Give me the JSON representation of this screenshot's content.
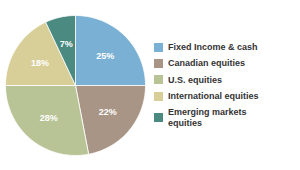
{
  "chart_data": {
    "type": "pie",
    "categories": [
      "Fixed Income & cash",
      "Canadian equities",
      "U.S. equities",
      "International equities",
      "Emerging markets\nequities"
    ],
    "values": [
      25,
      22,
      28,
      18,
      7
    ],
    "value_labels": [
      "25%",
      "22%",
      "28%",
      "18%",
      "7%"
    ],
    "colors": [
      "#7ab0d4",
      "#a89585",
      "#b8c495",
      "#d8ce98",
      "#4a8a80"
    ],
    "data_labels": true,
    "legend": "right"
  }
}
